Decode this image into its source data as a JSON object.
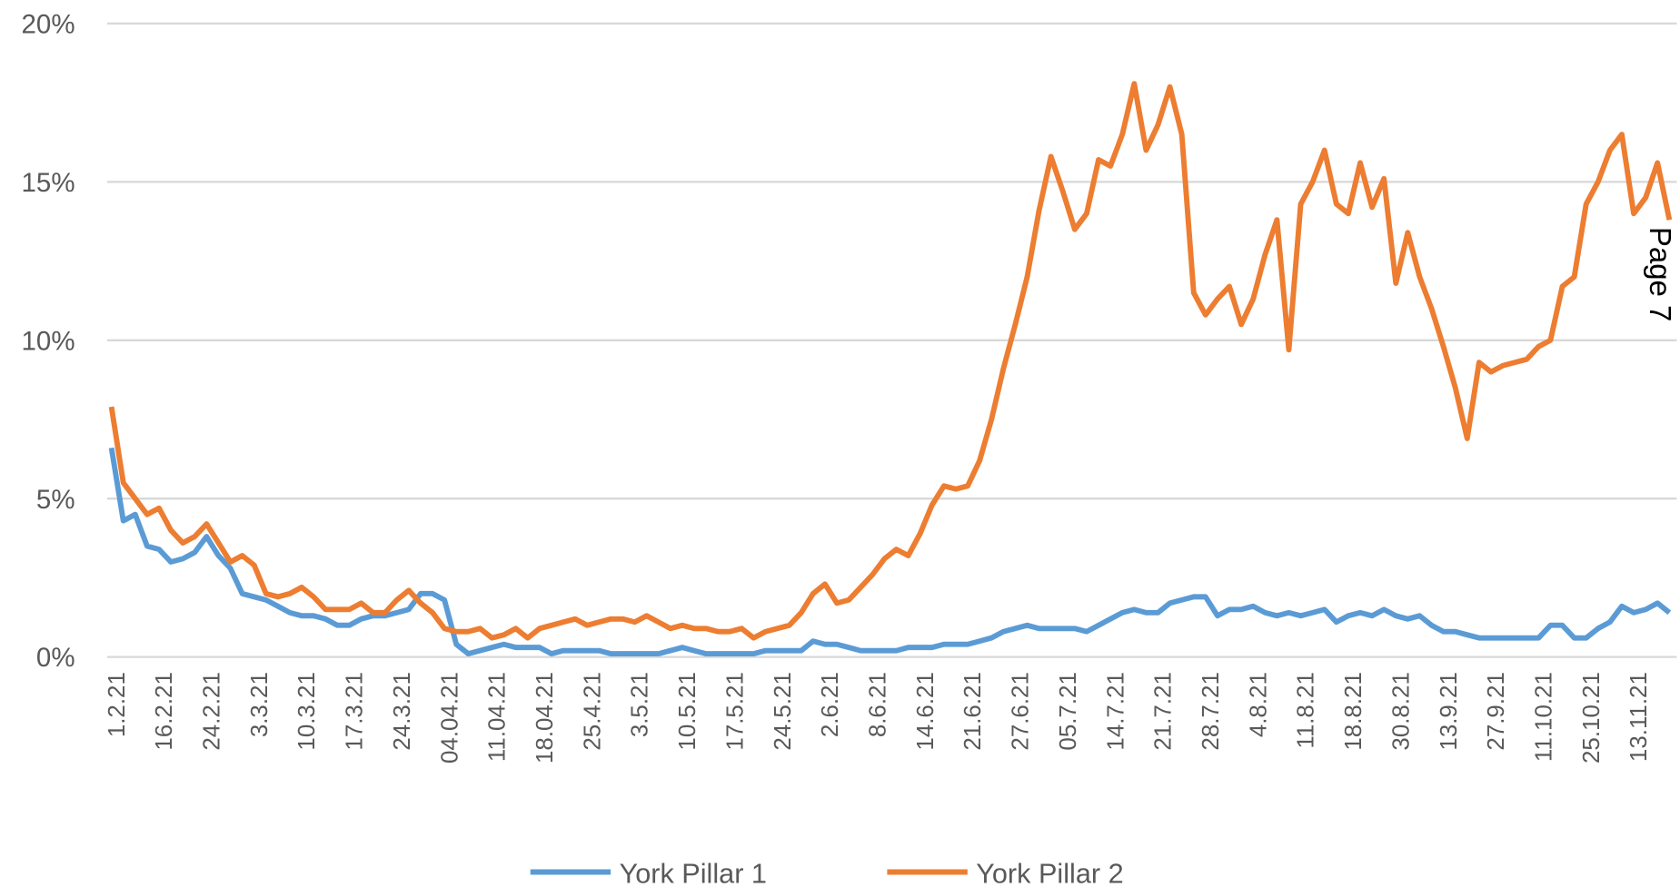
{
  "chart_data": {
    "type": "line",
    "annotation": "Page 7",
    "categories": [
      "1.2.21",
      null,
      null,
      null,
      "16.2.21",
      null,
      null,
      null,
      "24.2.21",
      null,
      null,
      null,
      "3.3.21",
      null,
      null,
      null,
      "10.3.21",
      null,
      null,
      null,
      "17.3.21",
      null,
      null,
      null,
      "24.3.21",
      null,
      null,
      null,
      "04.04.21",
      null,
      null,
      null,
      "11.04.21",
      null,
      null,
      null,
      "18.04.21",
      null,
      null,
      null,
      "25.4.21",
      null,
      null,
      null,
      "3.5.21",
      null,
      null,
      null,
      "10.5.21",
      null,
      null,
      null,
      "17.5.21",
      null,
      null,
      null,
      "24.5.21",
      null,
      null,
      null,
      "2.6.21",
      null,
      null,
      null,
      "8.6.21",
      null,
      null,
      null,
      "14.6.21",
      null,
      null,
      null,
      "21.6.21",
      null,
      null,
      null,
      "27.6.21",
      null,
      null,
      null,
      "05.7.21",
      null,
      null,
      null,
      "14.7.21",
      null,
      null,
      null,
      "21.7.21",
      null,
      null,
      null,
      "28.7.21",
      null,
      null,
      null,
      "4.8.21",
      null,
      null,
      null,
      "11.8.21",
      null,
      null,
      null,
      "18.8.21",
      null,
      null,
      null,
      "30.8.21",
      null,
      null,
      null,
      "13.9.21",
      null,
      null,
      null,
      "27.9.21",
      null,
      null,
      null,
      "11.10.21",
      null,
      null,
      null,
      "25.10.21",
      null,
      null,
      null,
      "13.11.21",
      null,
      null,
      null
    ],
    "series": [
      {
        "name": "York Pillar 1",
        "color": "#5b9bd5",
        "values": [
          6.6,
          4.3,
          4.5,
          3.5,
          3.4,
          3.0,
          3.1,
          3.3,
          3.8,
          3.2,
          2.8,
          2.0,
          1.9,
          1.8,
          1.6,
          1.4,
          1.3,
          1.3,
          1.2,
          1.0,
          1.0,
          1.2,
          1.3,
          1.3,
          1.4,
          1.5,
          2.0,
          2.0,
          1.8,
          0.4,
          0.1,
          0.2,
          0.3,
          0.4,
          0.3,
          0.3,
          0.3,
          0.1,
          0.2,
          0.2,
          0.2,
          0.2,
          0.1,
          0.1,
          0.1,
          0.1,
          0.1,
          0.2,
          0.3,
          0.2,
          0.1,
          0.1,
          0.1,
          0.1,
          0.1,
          0.2,
          0.2,
          0.2,
          0.2,
          0.5,
          0.4,
          0.4,
          0.3,
          0.2,
          0.2,
          0.2,
          0.2,
          0.3,
          0.3,
          0.3,
          0.4,
          0.4,
          0.4,
          0.5,
          0.6,
          0.8,
          0.9,
          1.0,
          0.9,
          0.9,
          0.9,
          0.9,
          0.8,
          1.0,
          1.2,
          1.4,
          1.5,
          1.4,
          1.4,
          1.7,
          1.8,
          1.9,
          1.9,
          1.3,
          1.5,
          1.5,
          1.6,
          1.4,
          1.3,
          1.4,
          1.3,
          1.4,
          1.5,
          1.1,
          1.3,
          1.4,
          1.3,
          1.5,
          1.3,
          1.2,
          1.3,
          1.0,
          0.8,
          0.8,
          0.7,
          0.6,
          0.6,
          0.6,
          0.6,
          0.6,
          0.6,
          1.0,
          1.0,
          0.6,
          0.6,
          0.9,
          1.1,
          1.6,
          1.4,
          1.5,
          1.7,
          1.4
        ]
      },
      {
        "name": "York Pillar 2",
        "color": "#ed7d31",
        "values": [
          7.9,
          5.5,
          5.0,
          4.5,
          4.7,
          4.0,
          3.6,
          3.8,
          4.2,
          3.6,
          3.0,
          3.2,
          2.9,
          2.0,
          1.9,
          2.0,
          2.2,
          1.9,
          1.5,
          1.5,
          1.5,
          1.7,
          1.4,
          1.4,
          1.8,
          2.1,
          1.7,
          1.4,
          0.9,
          0.8,
          0.8,
          0.9,
          0.6,
          0.7,
          0.9,
          0.6,
          0.9,
          1.0,
          1.1,
          1.2,
          1.0,
          1.1,
          1.2,
          1.2,
          1.1,
          1.3,
          1.1,
          0.9,
          1.0,
          0.9,
          0.9,
          0.8,
          0.8,
          0.9,
          0.6,
          0.8,
          0.9,
          1.0,
          1.4,
          2.0,
          2.3,
          1.7,
          1.8,
          2.2,
          2.6,
          3.1,
          3.4,
          3.2,
          3.9,
          4.8,
          5.4,
          5.3,
          5.4,
          6.2,
          7.5,
          9.1,
          10.5,
          12.0,
          14.1,
          15.8,
          14.7,
          13.5,
          14.0,
          15.7,
          15.5,
          16.5,
          18.1,
          16.0,
          16.8,
          18.0,
          16.5,
          11.5,
          10.8,
          11.3,
          11.7,
          10.5,
          11.3,
          12.7,
          13.8,
          9.7,
          14.3,
          15.0,
          16.0,
          14.3,
          14.0,
          15.6,
          14.2,
          15.1,
          11.8,
          13.4,
          12.0,
          11.0,
          9.8,
          8.5,
          6.9,
          9.3,
          9.0,
          9.2,
          9.3,
          9.4,
          9.8,
          10.0,
          11.7,
          12.0,
          14.3,
          15.0,
          16.0,
          16.5,
          14.0,
          14.5,
          15.6,
          13.8
        ]
      }
    ],
    "ylim": [
      0,
      20
    ],
    "yticks": [
      {
        "value": 0,
        "label": "0%"
      },
      {
        "value": 5,
        "label": "5%"
      },
      {
        "value": 10,
        "label": "10%"
      },
      {
        "value": 15,
        "label": "15%"
      },
      {
        "value": 20,
        "label": "20%"
      }
    ],
    "grid": true,
    "legend": "bottom"
  }
}
